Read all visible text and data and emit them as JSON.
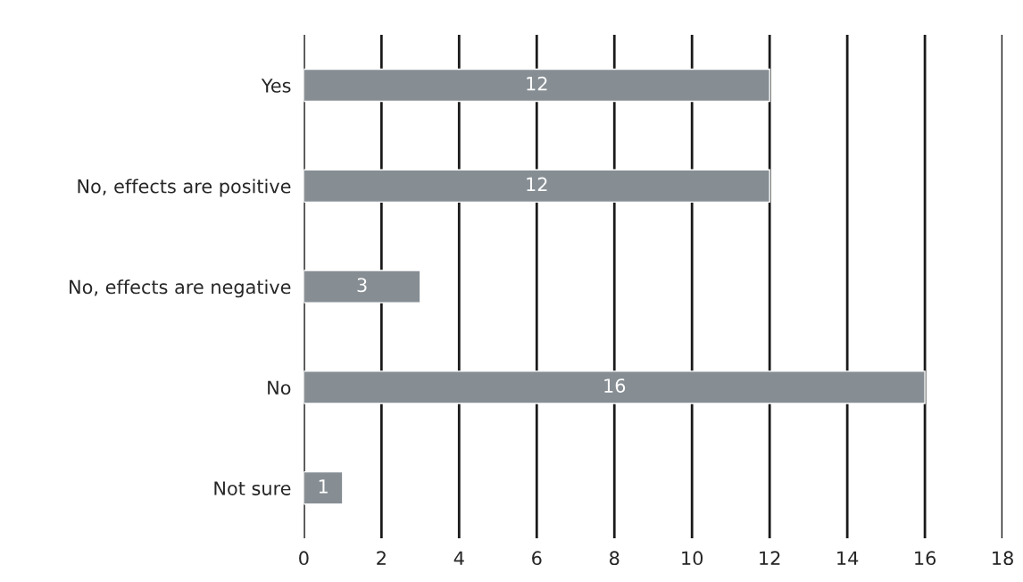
{
  "chart_data": {
    "type": "bar",
    "orientation": "horizontal",
    "categories": [
      "Yes",
      "No, effects are positive",
      "No, effects are negative",
      "No",
      "Not sure"
    ],
    "values": [
      12,
      12,
      3,
      16,
      1
    ],
    "color": "#868e94",
    "xlim": [
      0,
      18
    ],
    "xticks": [
      0,
      2,
      4,
      6,
      8,
      10,
      12,
      14,
      16,
      18
    ],
    "grid": "x",
    "data_labels": true
  }
}
